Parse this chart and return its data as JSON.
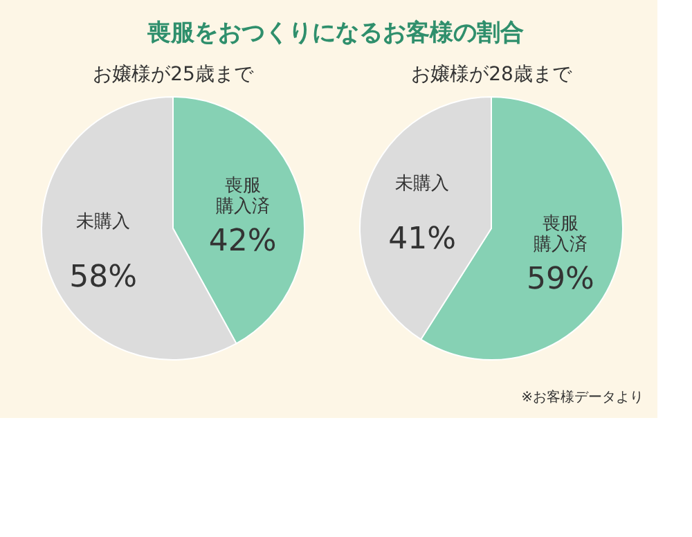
{
  "chart_data": [
    {
      "type": "pie",
      "title": "喪服をおつくりになるお客様の割合",
      "subtitle": "お嬢様が25歳まで",
      "categories": [
        "喪服購入済",
        "未購入"
      ],
      "values": [
        42,
        58
      ],
      "colors": [
        "#86d1b4",
        "#dcdcdc"
      ],
      "value_labels": [
        "42%",
        "58%"
      ],
      "legend": false
    },
    {
      "type": "pie",
      "subtitle": "お嬢様が28歳まで",
      "categories": [
        "喪服購入済",
        "未購入"
      ],
      "values": [
        59,
        41
      ],
      "colors": [
        "#86d1b4",
        "#dcdcdc"
      ],
      "value_labels": [
        "59%",
        "41%"
      ],
      "legend": false,
      "annotations": [
        "※お客様データより"
      ]
    }
  ]
}
